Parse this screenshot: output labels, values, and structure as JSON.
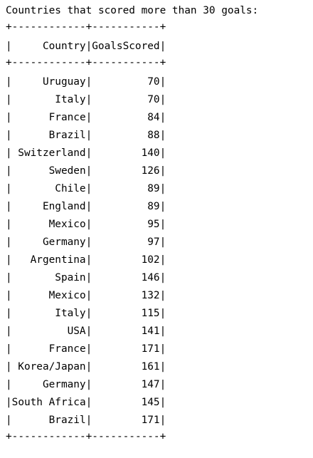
{
  "output": {
    "heading": "Countries that scored more than 30 goals:",
    "border": "+------------+-----------+",
    "columns": [
      "Country",
      "GoalsScored"
    ],
    "rows": [
      {
        "country": "Uruguay",
        "goals": "70"
      },
      {
        "country": "Italy",
        "goals": "70"
      },
      {
        "country": "France",
        "goals": "84"
      },
      {
        "country": "Brazil",
        "goals": "88"
      },
      {
        "country": "Switzerland",
        "goals": "140"
      },
      {
        "country": "Sweden",
        "goals": "126"
      },
      {
        "country": "Chile",
        "goals": "89"
      },
      {
        "country": "England",
        "goals": "89"
      },
      {
        "country": "Mexico",
        "goals": "95"
      },
      {
        "country": "Germany",
        "goals": "97"
      },
      {
        "country": "Argentina",
        "goals": "102"
      },
      {
        "country": "Spain",
        "goals": "146"
      },
      {
        "country": "Mexico",
        "goals": "132"
      },
      {
        "country": "Italy",
        "goals": "115"
      },
      {
        "country": "USA",
        "goals": "141"
      },
      {
        "country": "France",
        "goals": "171"
      },
      {
        "country": "Korea/Japan",
        "goals": "161"
      },
      {
        "country": "Germany",
        "goals": "147"
      },
      {
        "country": "South Africa",
        "goals": "145"
      },
      {
        "country": "Brazil",
        "goals": "171"
      }
    ]
  }
}
